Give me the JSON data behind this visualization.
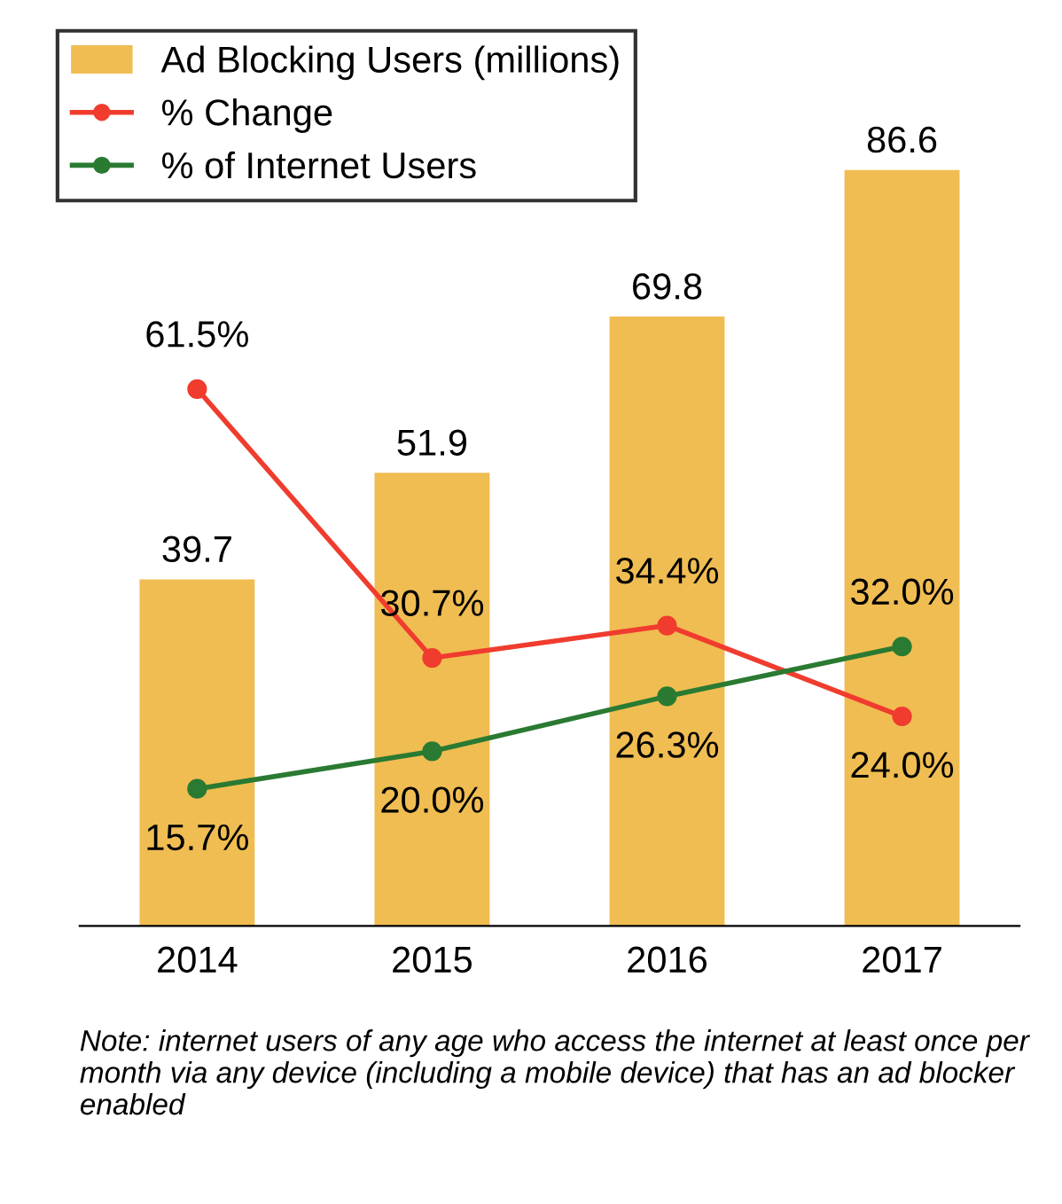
{
  "chart_data": {
    "type": "bar",
    "categories": [
      "2014",
      "2015",
      "2016",
      "2017"
    ],
    "series": [
      {
        "name": "Ad Blocking Users (millions)",
        "color": "#f0bd52",
        "values": [
          39.7,
          51.9,
          69.8,
          86.6
        ],
        "value_labels": [
          "39.7",
          "51.9",
          "69.8",
          "86.6"
        ]
      },
      {
        "name": "% Change",
        "type": "line",
        "color": "#f03c2e",
        "values": [
          61.5,
          30.7,
          34.4,
          24.0
        ],
        "value_labels": [
          "61.5%",
          "30.7%",
          "34.4%",
          "24.0%"
        ]
      },
      {
        "name": "% of Internet Users",
        "type": "line",
        "color": "#2a7a32",
        "values": [
          15.7,
          20.0,
          26.3,
          32.0
        ],
        "value_labels": [
          "15.7%",
          "20.0%",
          "26.3%",
          "32.0%"
        ]
      }
    ],
    "ylim": [
      0,
      100
    ],
    "tick_labels": "x",
    "marker": "circle",
    "legend": "top left",
    "grid": false,
    "annotations": [
      "Note: internet users of any age who access the internet at least once per month via any device (including a mobile device) that has an ad blocker enabled"
    ]
  }
}
